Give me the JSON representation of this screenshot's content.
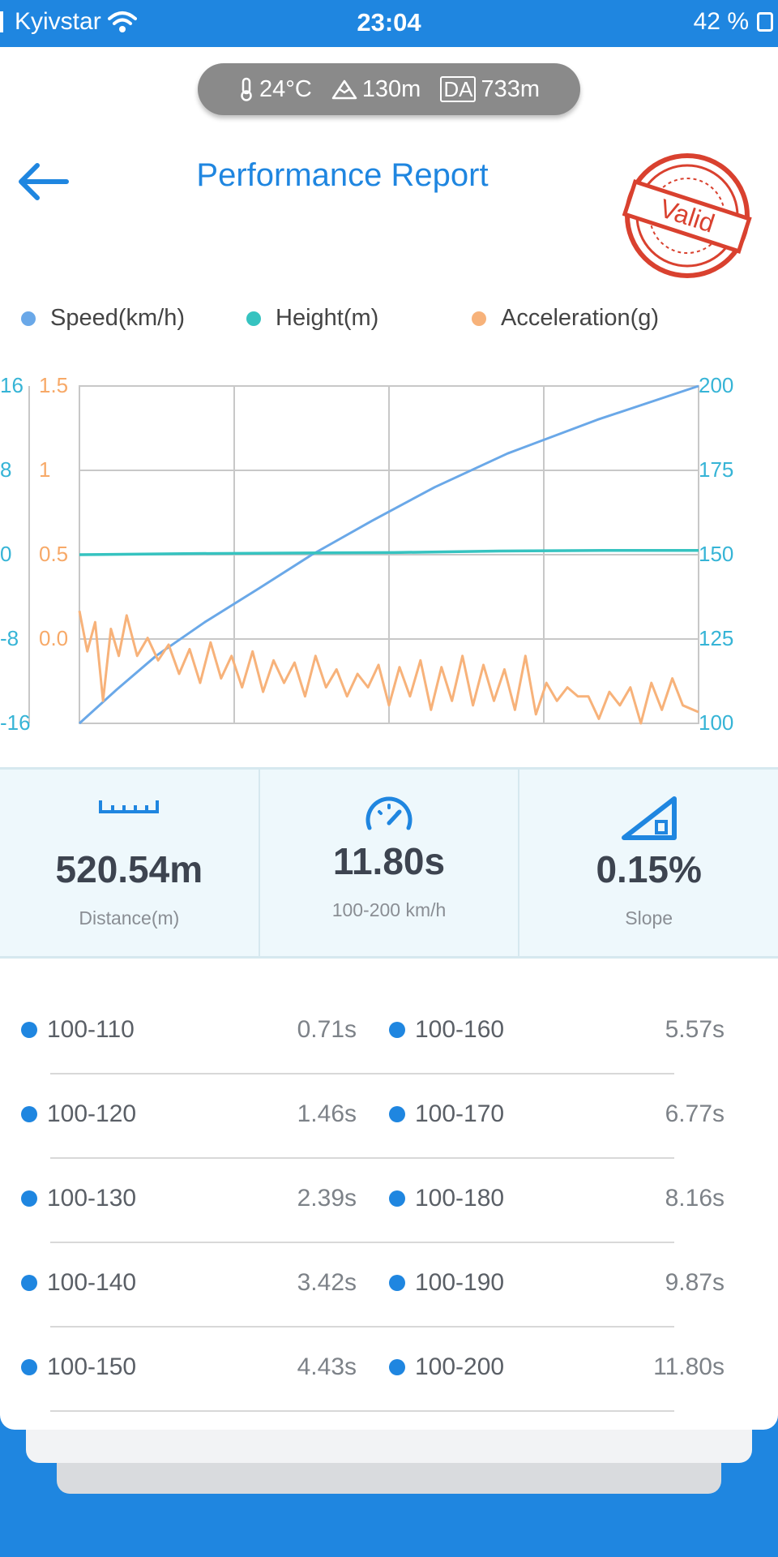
{
  "status_bar": {
    "carrier": "Kyivstar",
    "time": "23:04",
    "battery": "42 %"
  },
  "environment": {
    "temperature": "24°C",
    "altitude": "130m",
    "da_label": "DA",
    "density_altitude": "733m"
  },
  "header": {
    "title": "Performance Report",
    "stamp_text": "Valid"
  },
  "legend": [
    {
      "label": "Speed(km/h)",
      "color": "#6aa8e8"
    },
    {
      "label": "Height(m)",
      "color": "#36c3c0"
    },
    {
      "label": "Acceleration(g)",
      "color": "#f7b27a"
    }
  ],
  "chart_data": {
    "type": "line",
    "x_range": [
      0,
      11.8
    ],
    "axes": {
      "height": {
        "ticks": [
          "16",
          "8",
          "0",
          "-8",
          "-16"
        ],
        "range": [
          -16,
          16
        ],
        "color": "#36b4d6"
      },
      "acceleration": {
        "ticks": [
          "1.5",
          "1",
          "0.5",
          "0.0"
        ],
        "range": [
          0,
          1.5
        ],
        "color": "#f7a968"
      },
      "speed": {
        "ticks": [
          "200",
          "175",
          "150",
          "125",
          "100"
        ],
        "range": [
          100,
          200
        ],
        "color": "#36b4d6"
      }
    },
    "grid": true,
    "series": [
      {
        "name": "Speed(km/h)",
        "color": "#6aa8e8",
        "x": [
          0,
          0.71,
          1.46,
          2.39,
          3.42,
          4.43,
          5.57,
          6.77,
          8.16,
          9.87,
          11.8
        ],
        "y": [
          100,
          110,
          120,
          130,
          140,
          150,
          160,
          170,
          180,
          190,
          200
        ]
      },
      {
        "name": "Height(m)",
        "color": "#36c3c0",
        "x": [
          0,
          2,
          4,
          6,
          8,
          10,
          11.8
        ],
        "y": [
          0,
          0.1,
          0.15,
          0.2,
          0.35,
          0.4,
          0.4
        ]
      },
      {
        "name": "Acceleration(g)",
        "color": "#f7b27a",
        "x": [
          0,
          0.15,
          0.3,
          0.45,
          0.6,
          0.75,
          0.9,
          1.1,
          1.3,
          1.5,
          1.7,
          1.9,
          2.1,
          2.3,
          2.5,
          2.7,
          2.9,
          3.1,
          3.3,
          3.5,
          3.7,
          3.9,
          4.1,
          4.3,
          4.5,
          4.7,
          4.9,
          5.1,
          5.3,
          5.5,
          5.7,
          5.9,
          6.1,
          6.3,
          6.5,
          6.7,
          6.9,
          7.1,
          7.3,
          7.5,
          7.7,
          7.9,
          8.1,
          8.3,
          8.5,
          8.7,
          8.9,
          9.1,
          9.3,
          9.5,
          9.7,
          9.9,
          10.1,
          10.3,
          10.5,
          10.7,
          10.9,
          11.1,
          11.3,
          11.5,
          11.8
        ],
        "y": [
          0.5,
          0.32,
          0.45,
          0.1,
          0.42,
          0.3,
          0.48,
          0.3,
          0.38,
          0.28,
          0.35,
          0.22,
          0.33,
          0.18,
          0.36,
          0.2,
          0.3,
          0.16,
          0.32,
          0.14,
          0.28,
          0.18,
          0.27,
          0.12,
          0.3,
          0.16,
          0.24,
          0.12,
          0.22,
          0.16,
          0.26,
          0.08,
          0.25,
          0.12,
          0.28,
          0.06,
          0.25,
          0.1,
          0.3,
          0.08,
          0.26,
          0.1,
          0.24,
          0.06,
          0.3,
          0.04,
          0.18,
          0.1,
          0.16,
          0.12,
          0.12,
          0.02,
          0.14,
          0.08,
          0.16,
          0.0,
          0.18,
          0.06,
          0.2,
          0.08,
          0.05
        ]
      }
    ]
  },
  "summary": [
    {
      "value": "520.54m",
      "label": "Distance(m)",
      "icon": "ruler-icon"
    },
    {
      "value": "11.80s",
      "label": "100-200 km/h",
      "icon": "speedometer-icon"
    },
    {
      "value": "0.15%",
      "label": "Slope",
      "icon": "slope-icon"
    }
  ],
  "splits": [
    {
      "label": "100-110",
      "time": "0.71s"
    },
    {
      "label": "100-120",
      "time": "1.46s"
    },
    {
      "label": "100-130",
      "time": "2.39s"
    },
    {
      "label": "100-140",
      "time": "3.42s"
    },
    {
      "label": "100-150",
      "time": "4.43s"
    },
    {
      "label": "100-160",
      "time": "5.57s"
    },
    {
      "label": "100-170",
      "time": "6.77s"
    },
    {
      "label": "100-180",
      "time": "8.16s"
    },
    {
      "label": "100-190",
      "time": "9.87s"
    },
    {
      "label": "100-200",
      "time": "11.80s"
    }
  ]
}
